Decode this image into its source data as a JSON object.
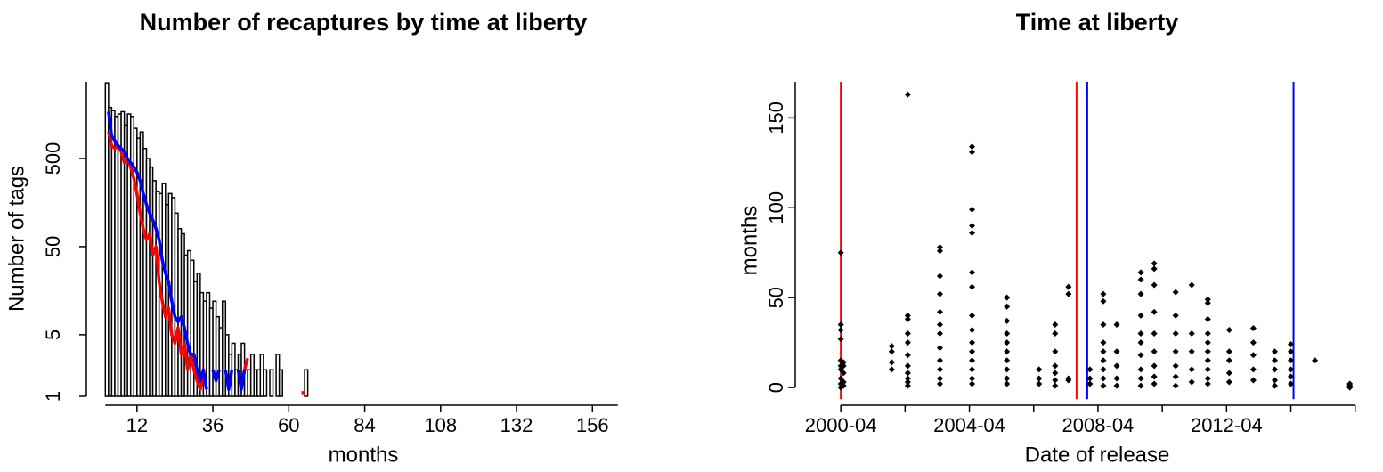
{
  "chart_data": [
    {
      "type": "histogram",
      "title": "Number of recaptures by time at liberty",
      "xlabel": "months",
      "ylabel": "Number of tags",
      "bins": [
        2,
        3,
        4,
        5,
        6,
        7,
        8,
        9,
        10,
        11,
        12,
        13,
        14,
        15,
        16,
        17,
        18,
        19,
        20,
        21,
        22,
        23,
        24,
        25,
        26,
        27,
        28,
        29,
        30,
        31,
        32,
        33,
        34,
        35,
        36,
        37,
        38,
        39,
        40,
        41,
        42,
        43,
        44,
        45,
        46,
        47,
        48,
        49,
        50,
        51,
        52,
        53,
        54,
        55,
        56,
        57,
        58,
        59,
        60,
        61,
        62,
        63,
        64,
        65,
        66,
        67,
        68,
        69,
        70,
        71,
        72,
        73,
        74,
        75,
        76,
        77,
        78,
        79,
        80,
        81,
        82,
        83,
        84,
        85,
        86,
        87,
        88,
        89,
        90,
        91,
        92,
        93,
        94,
        95,
        96,
        97,
        98,
        99,
        100,
        101,
        102,
        103,
        104,
        105,
        106,
        107,
        108,
        109,
        110,
        111,
        112,
        113,
        114,
        115,
        116,
        117,
        118,
        119,
        120,
        121,
        122,
        123,
        124,
        125,
        126,
        127,
        128,
        129,
        130,
        131,
        132,
        133,
        134,
        135,
        136,
        137,
        138,
        139,
        140,
        141,
        142,
        143,
        144,
        145,
        146,
        147,
        148,
        149,
        150,
        151,
        152,
        153,
        154,
        155,
        156,
        157,
        158,
        159,
        160,
        161,
        162,
        163,
        164
      ],
      "counts": [
        3600,
        1900,
        1750,
        1500,
        1600,
        1700,
        1200,
        1600,
        1500,
        1100,
        850,
        1000,
        650,
        500,
        400,
        280,
        210,
        200,
        260,
        150,
        200,
        180,
        120,
        80,
        70,
        40,
        45,
        35,
        20,
        25,
        15,
        12,
        15,
        10,
        12,
        8,
        6,
        12,
        5,
        3,
        4,
        2,
        3,
        4,
        2,
        2,
        3,
        2,
        2,
        3,
        2,
        0,
        2,
        1,
        3,
        2,
        1,
        0,
        1,
        0,
        0,
        0,
        0,
        2,
        0,
        0,
        0,
        0,
        0,
        1,
        0,
        1,
        1,
        0,
        1,
        1,
        1,
        1,
        0,
        0,
        0,
        0,
        0,
        0,
        0,
        0,
        1,
        0,
        1,
        0,
        0,
        0,
        0,
        1,
        0,
        0,
        0,
        0,
        0,
        1,
        0,
        0,
        0,
        0,
        0,
        0,
        0,
        0,
        0,
        0,
        0,
        0,
        0,
        0,
        0,
        0,
        0,
        0,
        0,
        0,
        0,
        0,
        0,
        0,
        0,
        0,
        0,
        0,
        0,
        0,
        0,
        1,
        1,
        0,
        0,
        0,
        0,
        0,
        0,
        0,
        0,
        0,
        0,
        0,
        0,
        0,
        0,
        0,
        0,
        0,
        0,
        0,
        0,
        0,
        0,
        0,
        0,
        0,
        0,
        0,
        0,
        1
      ],
      "bar_fill": "#ffffff",
      "bar_edge": "#000000",
      "ylog": true,
      "xlim": [
        -4,
        170
      ],
      "ylim": [
        1,
        3700
      ],
      "xticks": [
        12,
        36,
        60,
        84,
        108,
        132,
        156
      ],
      "yticks": [
        1,
        5,
        50,
        500
      ],
      "series": [
        {
          "color": "#ff0000",
          "x": [
            3,
            4,
            5,
            6,
            7,
            8,
            9,
            10,
            11,
            12,
            13,
            14,
            15,
            16,
            17,
            18,
            19,
            20,
            21,
            22,
            23,
            24,
            25,
            26,
            27,
            28,
            29,
            30,
            31,
            32,
            33,
            34,
            45,
            46,
            47,
            48,
            64,
            65
          ],
          "values": [
            1000,
            700,
            650,
            700,
            600,
            450,
            500,
            400,
            300,
            200,
            120,
            80,
            60,
            70,
            40,
            50,
            20,
            12,
            8,
            10,
            5,
            4,
            6,
            3,
            4,
            2,
            3,
            2,
            1.5,
            1.2,
            2,
            null,
            1.3,
            2,
            2.7,
            null,
            1.1,
            1.1
          ]
        },
        {
          "color": "#0000ff",
          "x": [
            3,
            4,
            5,
            6,
            7,
            8,
            9,
            10,
            11,
            12,
            13,
            14,
            15,
            16,
            17,
            18,
            19,
            20,
            21,
            22,
            23,
            24,
            25,
            26,
            27,
            28,
            29,
            30,
            31,
            32,
            33,
            34,
            35,
            36,
            37,
            38,
            39,
            40,
            41,
            42,
            43,
            44,
            45,
            46
          ],
          "values": [
            1700,
            900,
            800,
            700,
            650,
            600,
            500,
            450,
            400,
            350,
            280,
            200,
            150,
            120,
            100,
            80,
            60,
            35,
            25,
            20,
            12,
            8,
            7,
            8,
            6,
            4,
            3,
            3,
            2,
            1.5,
            2,
            1.2,
            null,
            2,
            1.5,
            2,
            null,
            2,
            1.2,
            2,
            null,
            2,
            1.2,
            2
          ]
        }
      ]
    },
    {
      "type": "scatter",
      "title": "Time at liberty",
      "xlabel": "Date of release",
      "ylabel": "months",
      "color": "#000000",
      "x": [
        "2000-04",
        "2000-04",
        "2000-04",
        "2000-04",
        "2000-04",
        "2000-04",
        "2000-04",
        "2000-04",
        "2000-04",
        "2000-04",
        "2000-05",
        "2000-05",
        "2000-05",
        "2000-05",
        "2000-05",
        "2001-11",
        "2001-11",
        "2001-11",
        "2001-11",
        "2002-05",
        "2002-05",
        "2002-05",
        "2002-05",
        "2002-05",
        "2002-05",
        "2002-05",
        "2002-05",
        "2002-05",
        "2002-05",
        "2002-05",
        "2003-05",
        "2003-05",
        "2003-05",
        "2003-05",
        "2003-05",
        "2003-05",
        "2003-05",
        "2003-05",
        "2003-05",
        "2003-05",
        "2003-05",
        "2003-05",
        "2004-05",
        "2004-05",
        "2004-05",
        "2004-05",
        "2004-05",
        "2004-05",
        "2004-05",
        "2004-05",
        "2004-05",
        "2004-05",
        "2004-05",
        "2004-05",
        "2004-05",
        "2004-05",
        "2004-05",
        "2005-06",
        "2005-06",
        "2005-06",
        "2005-06",
        "2005-06",
        "2005-06",
        "2005-06",
        "2005-06",
        "2005-06",
        "2005-06",
        "2006-06",
        "2006-06",
        "2006-06",
        "2006-12",
        "2006-12",
        "2006-12",
        "2006-12",
        "2006-12",
        "2006-12",
        "2006-12",
        "2007-05",
        "2007-05",
        "2007-05",
        "2007-05",
        "2008-01",
        "2008-01",
        "2008-01",
        "2008-06",
        "2008-06",
        "2008-06",
        "2008-06",
        "2008-06",
        "2008-06",
        "2008-06",
        "2008-06",
        "2008-06",
        "2008-11",
        "2008-11",
        "2008-11",
        "2008-11",
        "2008-11",
        "2009-08",
        "2009-08",
        "2009-08",
        "2009-08",
        "2009-08",
        "2009-08",
        "2009-08",
        "2009-08",
        "2009-08",
        "2009-08",
        "2010-01",
        "2010-01",
        "2010-01",
        "2010-01",
        "2010-01",
        "2010-01",
        "2010-01",
        "2010-01",
        "2010-01",
        "2010-09",
        "2010-09",
        "2010-09",
        "2010-09",
        "2010-09",
        "2010-09",
        "2010-09",
        "2011-03",
        "2011-03",
        "2011-03",
        "2011-03",
        "2011-03",
        "2011-09",
        "2011-09",
        "2011-09",
        "2011-09",
        "2011-09",
        "2011-09",
        "2011-09",
        "2011-09",
        "2011-09",
        "2011-09",
        "2012-05",
        "2012-05",
        "2012-05",
        "2012-05",
        "2012-05",
        "2013-02",
        "2013-02",
        "2013-02",
        "2013-02",
        "2013-02",
        "2013-10",
        "2013-10",
        "2013-10",
        "2013-10",
        "2013-10",
        "2014-04",
        "2014-04",
        "2014-04",
        "2014-04",
        "2014-04",
        "2014-04",
        "2015-01",
        "2016-02",
        "2016-02",
        "2016-02"
      ],
      "values": [
        75,
        35,
        32,
        27,
        15,
        12,
        10,
        5,
        2,
        0,
        14,
        12,
        8,
        3,
        1,
        23,
        20,
        14,
        10,
        163,
        40,
        38,
        30,
        25,
        18,
        12,
        8,
        5,
        3,
        1,
        78,
        76,
        62,
        52,
        42,
        35,
        30,
        22,
        15,
        10,
        5,
        2,
        134,
        131,
        99,
        90,
        86,
        64,
        56,
        40,
        32,
        25,
        20,
        15,
        10,
        5,
        2,
        50,
        45,
        37,
        30,
        25,
        20,
        15,
        10,
        5,
        2,
        10,
        5,
        2,
        35,
        30,
        20,
        12,
        8,
        4,
        1,
        56,
        52,
        5,
        4,
        10,
        5,
        2,
        52,
        48,
        35,
        25,
        20,
        15,
        10,
        5,
        1,
        35,
        20,
        12,
        5,
        1,
        64,
        60,
        52,
        40,
        30,
        25,
        18,
        10,
        5,
        1,
        69,
        66,
        57,
        42,
        30,
        20,
        12,
        6,
        2,
        53,
        40,
        30,
        20,
        12,
        6,
        1,
        57,
        30,
        20,
        10,
        3,
        49,
        47,
        38,
        30,
        25,
        20,
        15,
        10,
        5,
        2,
        32,
        20,
        15,
        8,
        3,
        33,
        25,
        18,
        10,
        4,
        20,
        15,
        10,
        4,
        1,
        24,
        20,
        15,
        10,
        6,
        2,
        15,
        2,
        1,
        0
      ],
      "xlim": [
        "1998-11",
        "2016-12"
      ],
      "ylim": [
        -6.5,
        170
      ],
      "xticks": [
        "2000-04",
        {
          "value": "2002-04",
          "label": null
        },
        "2004-04",
        {
          "value": "2006-04",
          "label": null
        },
        "2008-04",
        {
          "value": "2010-04",
          "label": null
        },
        "2012-04",
        {
          "value": "2014-04",
          "label": null
        },
        {
          "value": "2016-04",
          "label": null
        }
      ],
      "yticks": [
        0,
        50,
        100,
        150
      ],
      "vlines": [
        {
          "x": "2000-04",
          "color": "#ff0000"
        },
        {
          "x": "2007-08",
          "color": "#ff0000"
        },
        {
          "x": "2007-12",
          "color": "#0000ff"
        },
        {
          "x": "2014-05",
          "color": "#0000ff"
        }
      ]
    }
  ]
}
